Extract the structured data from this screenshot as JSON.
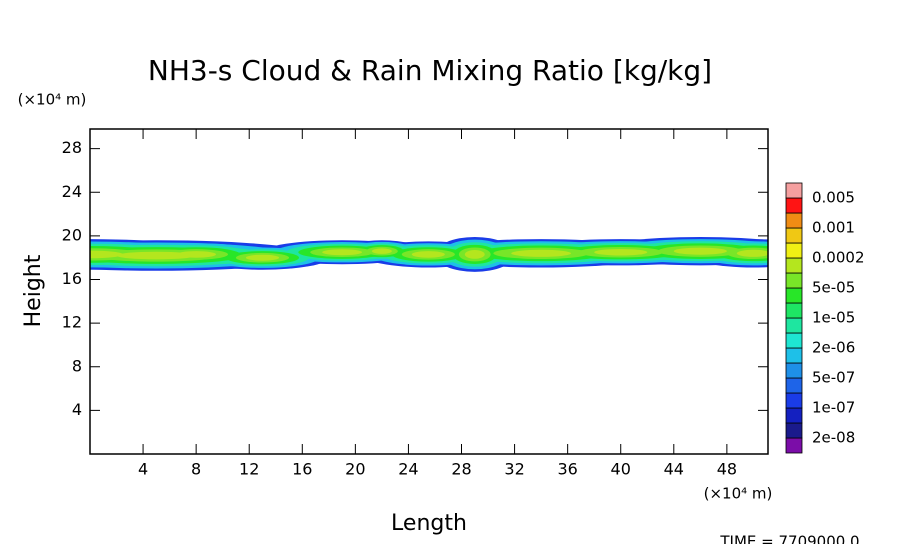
{
  "chart_data": {
    "type": "contour",
    "title": "NH3-s Cloud & Rain Mixing Ratio [kg/kg]",
    "xlabel": "Length",
    "ylabel": "Height",
    "x_unit": "(×10⁴ m)",
    "y_unit": "(×10⁴ m)",
    "footer": "TIME = 7709000.0",
    "xlim": [
      0,
      51.1
    ],
    "ylim": [
      0,
      29.8
    ],
    "xticks": [
      4,
      8,
      12,
      16,
      20,
      24,
      28,
      32,
      36,
      40,
      44,
      48
    ],
    "yticks": [
      4,
      8,
      12,
      16,
      20,
      24,
      28
    ],
    "colorbar": {
      "colors": [
        "#7b0da8",
        "#1a1a8c",
        "#1420c0",
        "#1a3ce8",
        "#1e64e8",
        "#1e90e8",
        "#1ec0e8",
        "#1ee6d2",
        "#1ee6a0",
        "#1ee664",
        "#28e628",
        "#78e628",
        "#b4e61e",
        "#f0f014",
        "#f0c814",
        "#f08c14",
        "#ff1414",
        "#f5a0a0"
      ],
      "levels": [
        {
          "value": 2e-08,
          "label": "2e-08"
        },
        {
          "value": 1e-07,
          "label": "1e-07"
        },
        {
          "value": 5e-07,
          "label": "5e-07"
        },
        {
          "value": 2e-06,
          "label": "2e-06"
        },
        {
          "value": 1e-05,
          "label": "1e-05"
        },
        {
          "value": 5e-05,
          "label": "5e-05"
        },
        0.0002,
        0.001,
        0.005
      ]
    }
  }
}
